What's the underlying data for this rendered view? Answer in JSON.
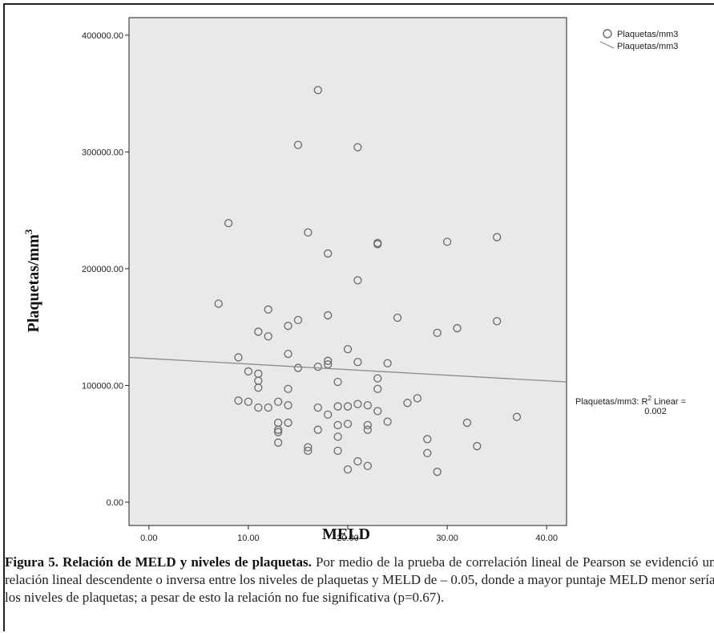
{
  "chart_data": {
    "type": "scatter",
    "xlabel": "MELD",
    "ylabel": "Plaquetas/mm",
    "ylabel_sup": "3",
    "xlim": [
      -2,
      42
    ],
    "ylim": [
      -20000,
      415000
    ],
    "x_ticks": [
      {
        "value": 0,
        "label": "0.00"
      },
      {
        "value": 10,
        "label": "10.00"
      },
      {
        "value": 20,
        "label": "20.00"
      },
      {
        "value": 30,
        "label": "30.00"
      },
      {
        "value": 40,
        "label": "40.00"
      }
    ],
    "y_ticks": [
      {
        "value": 0,
        "label": "0.00"
      },
      {
        "value": 100000,
        "label": "100000.00"
      },
      {
        "value": 200000,
        "label": "200000.00"
      },
      {
        "value": 300000,
        "label": "300000.00"
      },
      {
        "value": 400000,
        "label": "400000.00"
      }
    ],
    "legend": {
      "placement": "top-right",
      "entries": [
        {
          "symbol": "circle",
          "label": "Plaquetas/mm3"
        },
        {
          "symbol": "line",
          "label": "Plaquetas/mm3"
        }
      ]
    },
    "fit_line": {
      "x": [
        -2,
        42
      ],
      "y": [
        124000,
        103000
      ]
    },
    "fit_annotation": {
      "line1_prefix": "Plaquetas/mm3: R",
      "line1_sup": "2",
      "line1_suffix": " Linear =",
      "line2": "0.002"
    },
    "points": [
      {
        "x": 17,
        "y": 353000
      },
      {
        "x": 15,
        "y": 306000
      },
      {
        "x": 21,
        "y": 304000
      },
      {
        "x": 8,
        "y": 239000
      },
      {
        "x": 16,
        "y": 231000
      },
      {
        "x": 23,
        "y": 222000
      },
      {
        "x": 23,
        "y": 221000
      },
      {
        "x": 30,
        "y": 223000
      },
      {
        "x": 35,
        "y": 227000
      },
      {
        "x": 18,
        "y": 213000
      },
      {
        "x": 21,
        "y": 190000
      },
      {
        "x": 7,
        "y": 170000
      },
      {
        "x": 12,
        "y": 165000
      },
      {
        "x": 18,
        "y": 160000
      },
      {
        "x": 25,
        "y": 158000
      },
      {
        "x": 15,
        "y": 156000
      },
      {
        "x": 35,
        "y": 155000
      },
      {
        "x": 14,
        "y": 151000
      },
      {
        "x": 31,
        "y": 149000
      },
      {
        "x": 11,
        "y": 146000
      },
      {
        "x": 29,
        "y": 145000
      },
      {
        "x": 12,
        "y": 142000
      },
      {
        "x": 20,
        "y": 131000
      },
      {
        "x": 14,
        "y": 127000
      },
      {
        "x": 9,
        "y": 124000
      },
      {
        "x": 18,
        "y": 121000
      },
      {
        "x": 21,
        "y": 120000
      },
      {
        "x": 18,
        "y": 118000
      },
      {
        "x": 24,
        "y": 119000
      },
      {
        "x": 17,
        "y": 116000
      },
      {
        "x": 15,
        "y": 115000
      },
      {
        "x": 10,
        "y": 112000
      },
      {
        "x": 11,
        "y": 110000
      },
      {
        "x": 23,
        "y": 106000
      },
      {
        "x": 11,
        "y": 104000
      },
      {
        "x": 19,
        "y": 103000
      },
      {
        "x": 11,
        "y": 98000
      },
      {
        "x": 14,
        "y": 97000
      },
      {
        "x": 23,
        "y": 97000
      },
      {
        "x": 27,
        "y": 89000
      },
      {
        "x": 9,
        "y": 87000
      },
      {
        "x": 10,
        "y": 86000
      },
      {
        "x": 13,
        "y": 86000
      },
      {
        "x": 26,
        "y": 85000
      },
      {
        "x": 21,
        "y": 84000
      },
      {
        "x": 14,
        "y": 83000
      },
      {
        "x": 22,
        "y": 83000
      },
      {
        "x": 19,
        "y": 82000
      },
      {
        "x": 20,
        "y": 82000
      },
      {
        "x": 11,
        "y": 81000
      },
      {
        "x": 12,
        "y": 81000
      },
      {
        "x": 17,
        "y": 81000
      },
      {
        "x": 23,
        "y": 78000
      },
      {
        "x": 18,
        "y": 75000
      },
      {
        "x": 37,
        "y": 73000
      },
      {
        "x": 24,
        "y": 69000
      },
      {
        "x": 13,
        "y": 68000
      },
      {
        "x": 14,
        "y": 68000
      },
      {
        "x": 32,
        "y": 68000
      },
      {
        "x": 19,
        "y": 66000
      },
      {
        "x": 20,
        "y": 67000
      },
      {
        "x": 22,
        "y": 66000
      },
      {
        "x": 13,
        "y": 62000
      },
      {
        "x": 17,
        "y": 62000
      },
      {
        "x": 22,
        "y": 62000
      },
      {
        "x": 13,
        "y": 60000
      },
      {
        "x": 19,
        "y": 56000
      },
      {
        "x": 28,
        "y": 54000
      },
      {
        "x": 13,
        "y": 51000
      },
      {
        "x": 33,
        "y": 48000
      },
      {
        "x": 16,
        "y": 47000
      },
      {
        "x": 16,
        "y": 44000
      },
      {
        "x": 19,
        "y": 44000
      },
      {
        "x": 28,
        "y": 42000
      },
      {
        "x": 21,
        "y": 35000
      },
      {
        "x": 22,
        "y": 31000
      },
      {
        "x": 20,
        "y": 28000
      },
      {
        "x": 29,
        "y": 26000
      }
    ],
    "grid": false
  },
  "caption": {
    "bold": "Figura 5. Relación de MELD y niveles de plaquetas.",
    "text": " Por medio de la prueba de correlación lineal de Pearson se evidenció una relación lineal descendente o inversa entre los niveles de plaquetas y MELD de – 0.05, donde a mayor puntaje MELD menor serían los niveles de plaquetas; a pesar de esto la relación no fue significativa (p=0.67)."
  },
  "colors": {
    "plot_bg": "#e9e9e9",
    "marker_stroke": "#6a6a6a",
    "fit_line": "#8a8a8a",
    "axis": "#222222"
  }
}
